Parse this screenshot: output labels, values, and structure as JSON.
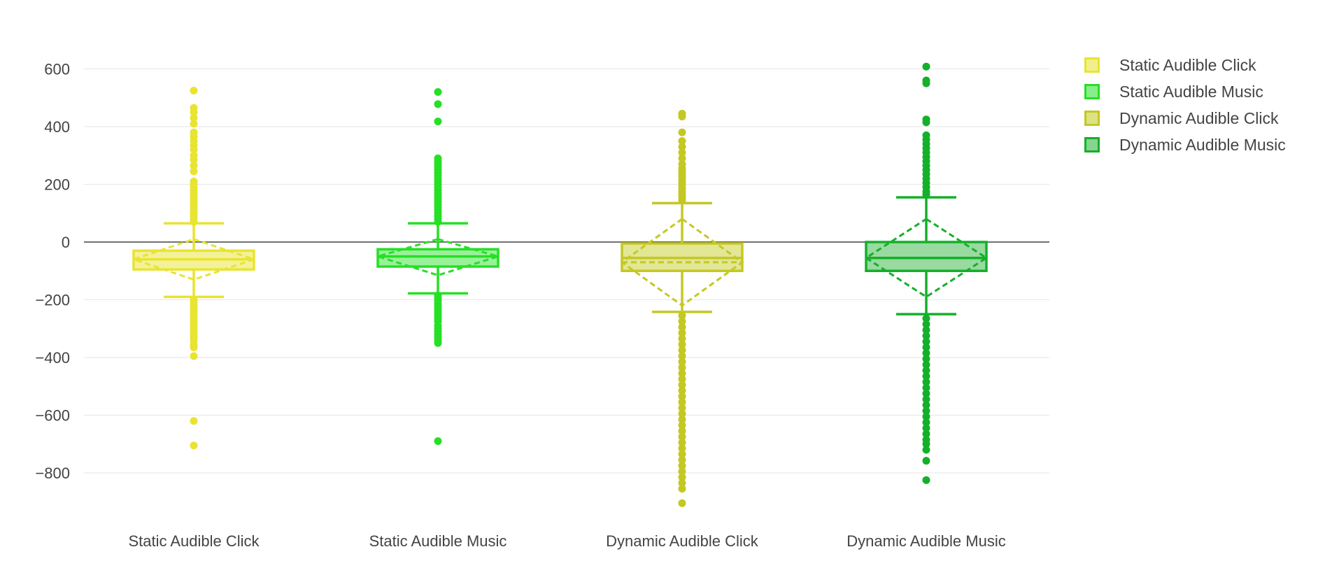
{
  "chart_data": {
    "type": "box",
    "title": "",
    "xlabel": "",
    "ylabel": "",
    "ylim": [
      -940,
      660
    ],
    "yticks": [
      600,
      400,
      200,
      0,
      -200,
      -400,
      -600,
      -800
    ],
    "ytick_labels": [
      "600",
      "400",
      "200",
      "0",
      "−200",
      "−400",
      "−600",
      "−800"
    ],
    "categories": [
      "Static Audible Click",
      "Static Audible Music",
      "Dynamic Audible Click",
      "Dynamic Audible Music"
    ],
    "grid": true,
    "zero_line": true,
    "legend_position": "top-right",
    "series": [
      {
        "name": "Static Audible Click",
        "color": "#e8e431",
        "fill": "#f2ef8a",
        "q1": -95,
        "median": -60,
        "q3": -30,
        "whisker_low": -190,
        "whisker_high": 65,
        "mean": -60,
        "sd_low": -130,
        "sd_high": 10,
        "outliers": [
          525,
          465,
          450,
          430,
          410,
          380,
          365,
          350,
          335,
          320,
          300,
          285,
          265,
          245,
          210,
          200,
          190,
          180,
          170,
          160,
          150,
          140,
          130,
          120,
          110,
          100,
          90,
          80,
          70,
          -200,
          -210,
          -220,
          -230,
          -240,
          -250,
          -260,
          -270,
          -280,
          -290,
          -300,
          -310,
          -320,
          -330,
          -340,
          -355,
          -365,
          -395,
          -620,
          -705
        ]
      },
      {
        "name": "Static Audible Music",
        "color": "#25e025",
        "fill": "#88ee88",
        "q1": -85,
        "median": -50,
        "q3": -25,
        "whisker_low": -178,
        "whisker_high": 65,
        "mean": -50,
        "sd_low": -115,
        "sd_high": 10,
        "outliers": [
          520,
          478,
          418,
          290,
          280,
          270,
          260,
          250,
          240,
          230,
          220,
          210,
          200,
          190,
          180,
          170,
          160,
          150,
          140,
          130,
          120,
          110,
          100,
          90,
          80,
          70,
          -185,
          -195,
          -205,
          -215,
          -225,
          -235,
          -245,
          -255,
          -265,
          -275,
          -290,
          -300,
          -310,
          -320,
          -330,
          -340,
          -350,
          -690
        ]
      },
      {
        "name": "Dynamic Audible Click",
        "color": "#c4c823",
        "fill": "#dde283",
        "q1": -100,
        "median": -55,
        "q3": -5,
        "whisker_low": -242,
        "whisker_high": 135,
        "mean": -70,
        "sd_low": -220,
        "sd_high": 80,
        "outliers": [
          445,
          435,
          380,
          350,
          330,
          310,
          290,
          270,
          255,
          245,
          235,
          225,
          215,
          205,
          195,
          185,
          175,
          165,
          155,
          145,
          -255,
          -275,
          -295,
          -315,
          -335,
          -355,
          -375,
          -395,
          -415,
          -435,
          -455,
          -475,
          -495,
          -515,
          -535,
          -555,
          -575,
          -595,
          -615,
          -635,
          -655,
          -675,
          -695,
          -715,
          -735,
          -755,
          -775,
          -795,
          -815,
          -835,
          -855,
          -905
        ]
      },
      {
        "name": "Dynamic Audible Music",
        "color": "#14b02a",
        "fill": "#86d48e",
        "q1": -100,
        "median": -55,
        "q3": 0,
        "whisker_low": -250,
        "whisker_high": 155,
        "mean": -55,
        "sd_low": -190,
        "sd_high": 80,
        "outliers": [
          608,
          560,
          550,
          425,
          415,
          370,
          355,
          340,
          325,
          310,
          295,
          280,
          265,
          250,
          235,
          220,
          205,
          190,
          175,
          165,
          -265,
          -285,
          -305,
          -325,
          -345,
          -365,
          -385,
          -405,
          -425,
          -445,
          -465,
          -485,
          -505,
          -525,
          -545,
          -565,
          -585,
          -605,
          -625,
          -645,
          -665,
          -685,
          -700,
          -720,
          -758,
          -825
        ]
      }
    ]
  }
}
